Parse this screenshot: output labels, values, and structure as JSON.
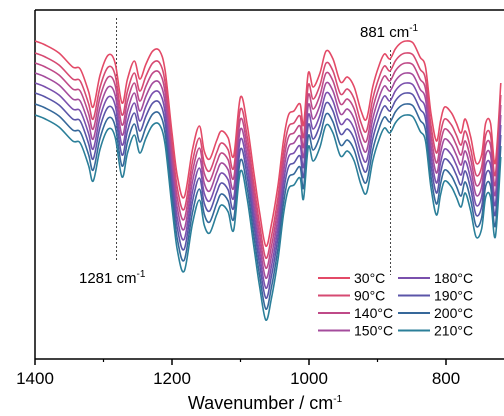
{
  "chart_data": {
    "type": "line",
    "title": "",
    "xlabel": "Wavenumber / cm",
    "xlabel_sup": "-1",
    "ylabel": "",
    "xlim": [
      1400,
      720
    ],
    "x_reversed": true,
    "x_ticks": [
      1400,
      1200,
      1000,
      800
    ],
    "y_ticks_shown": false,
    "grid": false,
    "legend_position": "bottom-right",
    "legend_columns": 2,
    "annotations": [
      {
        "text": "881 cm",
        "sup": "-1",
        "x": 881
      },
      {
        "text": "1281 cm",
        "sup": "-1",
        "x": 1281
      }
    ],
    "baseline_points": [
      [
        1400,
        78
      ],
      [
        1385,
        82
      ],
      [
        1365,
        90
      ],
      [
        1345,
        104
      ],
      [
        1334,
        106
      ],
      [
        1322,
        128
      ],
      [
        1315,
        144
      ],
      [
        1305,
        112
      ],
      [
        1293,
        92
      ],
      [
        1283,
        100
      ],
      [
        1273,
        140
      ],
      [
        1265,
        116
      ],
      [
        1255,
        98
      ],
      [
        1247,
        116
      ],
      [
        1238,
        101
      ],
      [
        1228,
        88
      ],
      [
        1218,
        88
      ],
      [
        1210,
        108
      ],
      [
        1200,
        170
      ],
      [
        1192,
        214
      ],
      [
        1182,
        234
      ],
      [
        1170,
        186
      ],
      [
        1160,
        163
      ],
      [
        1153,
        188
      ],
      [
        1145,
        196
      ],
      [
        1135,
        178
      ],
      [
        1128,
        168
      ],
      [
        1118,
        175
      ],
      [
        1110,
        193
      ],
      [
        1100,
        134
      ],
      [
        1090,
        163
      ],
      [
        1080,
        212
      ],
      [
        1072,
        250
      ],
      [
        1063,
        283
      ],
      [
        1055,
        262
      ],
      [
        1045,
        221
      ],
      [
        1037,
        176
      ],
      [
        1030,
        152
      ],
      [
        1022,
        148
      ],
      [
        1013,
        141
      ],
      [
        1008,
        162
      ],
      [
        1001,
        110
      ],
      [
        994,
        124
      ],
      [
        984,
        110
      ],
      [
        975,
        88
      ],
      [
        965,
        96
      ],
      [
        954,
        119
      ],
      [
        944,
        114
      ],
      [
        934,
        124
      ],
      [
        924,
        148
      ],
      [
        916,
        156
      ],
      [
        907,
        124
      ],
      [
        898,
        103
      ],
      [
        890,
        91
      ],
      [
        882,
        96
      ],
      [
        874,
        86
      ],
      [
        866,
        80
      ],
      [
        858,
        78
      ],
      [
        848,
        80
      ],
      [
        838,
        94
      ],
      [
        830,
        104
      ],
      [
        822,
        150
      ],
      [
        814,
        178
      ],
      [
        808,
        158
      ],
      [
        802,
        144
      ],
      [
        792,
        150
      ],
      [
        785,
        160
      ],
      [
        778,
        170
      ],
      [
        772,
        156
      ],
      [
        764,
        174
      ],
      [
        756,
        200
      ],
      [
        748,
        192
      ],
      [
        742,
        160
      ],
      [
        735,
        160
      ],
      [
        728,
        200
      ],
      [
        720,
        120
      ]
    ],
    "series": [
      {
        "name": "30°C",
        "color": "#e34a67",
        "offset": -37.0
      },
      {
        "name": "90°C",
        "color": "#d64a72",
        "offset": -25.0
      },
      {
        "name": "140°C",
        "color": "#bf4a88",
        "offset": -15.0
      },
      {
        "name": "150°C",
        "color": "#a44c9c",
        "offset": -5.0
      },
      {
        "name": "180°C",
        "color": "#7a50ad",
        "offset": 5.0
      },
      {
        "name": "190°C",
        "color": "#5b55a8",
        "offset": 15.0
      },
      {
        "name": "200°C",
        "color": "#36689a",
        "offset": 26.0
      },
      {
        "name": "210°C",
        "color": "#2b7f99",
        "offset": 37.0
      }
    ]
  }
}
